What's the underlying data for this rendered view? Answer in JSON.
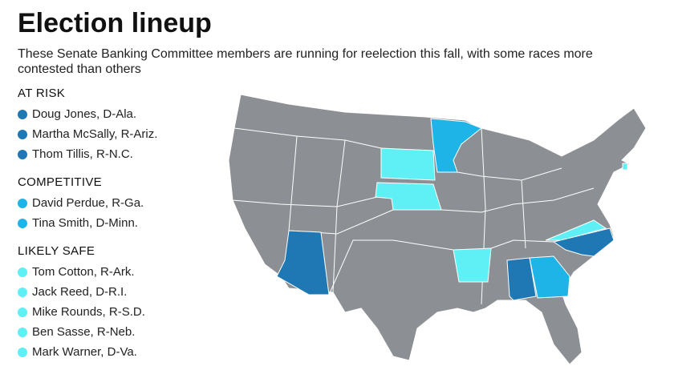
{
  "header": {
    "title": "Election lineup",
    "subtitle": "These Senate Banking Committee members are running for reelection this fall, with some races more contested than others"
  },
  "groups": [
    {
      "label": "AT RISK",
      "color": "#1f78b4",
      "members": [
        "Doug Jones, D-Ala.",
        "Martha McSally, R-Ariz.",
        "Thom Tillis, R-N.C."
      ]
    },
    {
      "label": "COMPETITIVE",
      "color": "#1fb4e8",
      "members": [
        "David Perdue, R-Ga.",
        "Tina Smith, D-Minn."
      ]
    },
    {
      "label": "LIKELY SAFE",
      "color": "#5ff0f5",
      "members": [
        "Tom Cotton, R-Ark.",
        "Jack Reed, D-R.I.",
        "Mike Rounds, R-S.D.",
        "Ben Sasse, R-Neb.",
        "Mark Warner, D-Va."
      ]
    }
  ]
}
